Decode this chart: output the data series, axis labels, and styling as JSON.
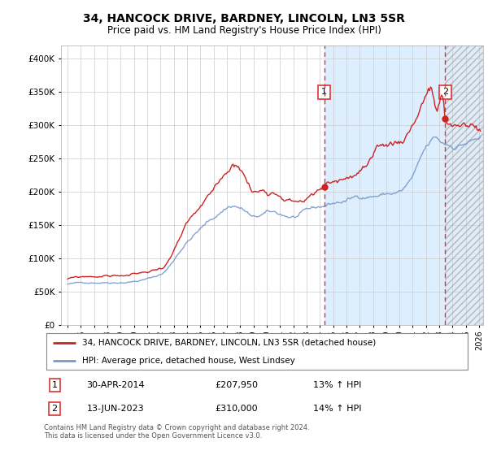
{
  "title": "34, HANCOCK DRIVE, BARDNEY, LINCOLN, LN3 5SR",
  "subtitle": "Price paid vs. HM Land Registry's House Price Index (HPI)",
  "ylim": [
    0,
    420000
  ],
  "xlim_start": 1994.5,
  "xlim_end": 2026.3,
  "sale1_date": 2014.33,
  "sale1_price": 207950,
  "sale1_label": "1",
  "sale2_date": 2023.45,
  "sale2_price": 310000,
  "sale2_label": "2",
  "line_color_red": "#cc2222",
  "line_color_blue": "#7799cc",
  "shade_color": "#ddeeff",
  "hatch_color": "#c8d8e8",
  "vline_color": "#dd3333",
  "legend_line1": "34, HANCOCK DRIVE, BARDNEY, LINCOLN, LN3 5SR (detached house)",
  "legend_line2": "HPI: Average price, detached house, West Lindsey",
  "footer": "Contains HM Land Registry data © Crown copyright and database right 2024.\nThis data is licensed under the Open Government Licence v3.0.",
  "xtick_years": [
    1995,
    1996,
    1997,
    1998,
    1999,
    2000,
    2001,
    2002,
    2003,
    2004,
    2005,
    2006,
    2007,
    2008,
    2009,
    2010,
    2011,
    2012,
    2013,
    2014,
    2015,
    2016,
    2017,
    2018,
    2019,
    2020,
    2021,
    2022,
    2023,
    2024,
    2025,
    2026
  ]
}
